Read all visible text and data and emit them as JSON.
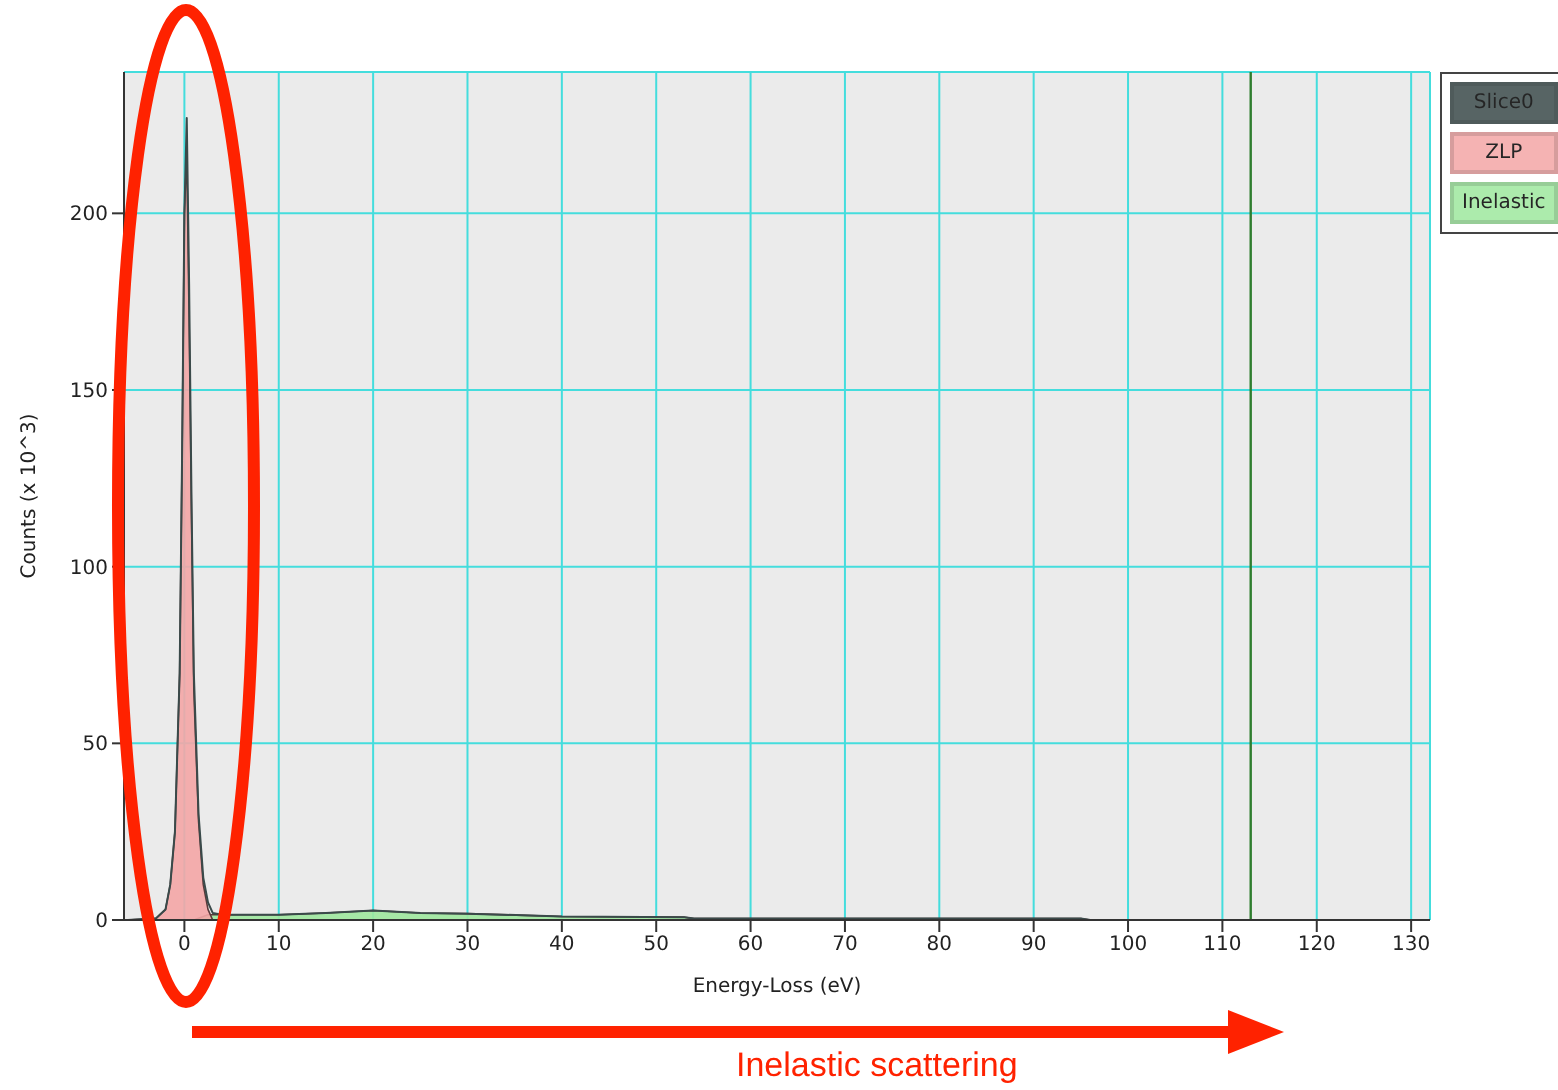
{
  "chart_data": {
    "type": "line",
    "xlabel": "Energy-Loss (eV)",
    "ylabel": "Counts (x 10^3)",
    "xlim": [
      -6.4,
      132
    ],
    "xticks": [
      0,
      10,
      20,
      30,
      40,
      50,
      60,
      70,
      80,
      90,
      100,
      110,
      120,
      130
    ],
    "ylim": [
      0,
      240
    ],
    "yticks": [
      0,
      50,
      100,
      150,
      200
    ],
    "grid": true,
    "legend": "top right",
    "series": [
      {
        "name": "Slice0",
        "color": "#3a4a4a",
        "x": [
          -6,
          -3,
          -2,
          -1.5,
          -1,
          -0.5,
          -0.25,
          0,
          0.25,
          0.5,
          0.75,
          1,
          1.5,
          2,
          2.5,
          3,
          4,
          5,
          10,
          15,
          20,
          25,
          30,
          40,
          53,
          54,
          95,
          96,
          132
        ],
        "values": [
          0,
          0.5,
          3,
          10,
          25,
          70,
          130,
          200,
          227,
          180,
          120,
          70,
          30,
          12,
          5,
          2,
          1.5,
          1.5,
          1.5,
          2,
          2.7,
          2,
          1.8,
          1,
          0.8,
          0.4,
          0.4,
          0,
          0
        ]
      },
      {
        "name": "ZLP",
        "type": "area",
        "color": "#f4a6a6",
        "x": [
          -6,
          -3,
          -2,
          -1.5,
          -1,
          -0.5,
          -0.25,
          0,
          0.25,
          0.5,
          0.75,
          1,
          1.5,
          2,
          2.5,
          3
        ],
        "values": [
          0,
          0.5,
          3,
          10,
          25,
          70,
          130,
          200,
          217,
          170,
          115,
          65,
          28,
          10,
          3,
          0
        ]
      },
      {
        "name": "Inelastic",
        "type": "area",
        "color": "#9ee89e",
        "x": [
          -6,
          1,
          2,
          2.5,
          3,
          4,
          5,
          10,
          15,
          20,
          25,
          30,
          40,
          53,
          54,
          95,
          96,
          132
        ],
        "values": [
          0,
          0,
          1,
          1.5,
          1.5,
          1.5,
          1.5,
          1.5,
          2,
          2.7,
          2,
          1.8,
          1,
          0.8,
          0.4,
          0.4,
          0,
          0
        ]
      }
    ],
    "ref_lines": [
      {
        "axis": "x",
        "value": 113,
        "color": "#2e7d2e"
      }
    ],
    "annotations": [
      "Inelastic scattering"
    ]
  }
}
